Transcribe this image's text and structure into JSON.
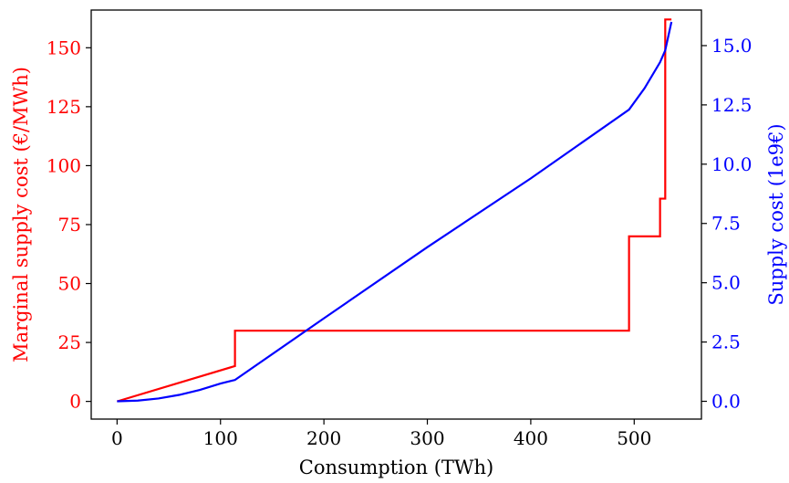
{
  "chart_data": {
    "type": "line",
    "title": "",
    "xlabel": "Consumption (TWh)",
    "ylabel_left": "Marginal supply cost (€/MWh)",
    "ylabel_right": "Supply cost (1e9€)",
    "xlim": [
      -25,
      565
    ],
    "ylim_left": [
      -7.5,
      166
    ],
    "ylim_right": [
      -0.75,
      16.5
    ],
    "xticks": [
      0,
      100,
      200,
      300,
      400,
      500
    ],
    "xtick_labels": [
      "0",
      "100",
      "200",
      "300",
      "400",
      "500"
    ],
    "yticks_left": [
      0,
      25,
      50,
      75,
      100,
      125,
      150
    ],
    "ytick_labels_left": [
      "0",
      "25",
      "50",
      "75",
      "100",
      "125",
      "150"
    ],
    "yticks_right": [
      0.0,
      2.5,
      5.0,
      7.5,
      10.0,
      12.5,
      15.0
    ],
    "ytick_labels_right": [
      "0.0",
      "2.5",
      "5.0",
      "7.5",
      "10.0",
      "12.5",
      "15.0"
    ],
    "grid": false,
    "series": [
      {
        "axis": "left",
        "color": "#ff0000",
        "x": [
          0,
          114,
          114,
          495,
          495,
          525,
          525,
          530,
          530,
          536
        ],
        "y": [
          0,
          15,
          30,
          30,
          70,
          70,
          86,
          86,
          162,
          162
        ]
      },
      {
        "axis": "right",
        "color": "#0000ff",
        "x": [
          0,
          20,
          40,
          60,
          80,
          100,
          114,
          200,
          300,
          400,
          495,
          510,
          525,
          530,
          536
        ],
        "y": [
          0,
          0.03,
          0.12,
          0.27,
          0.48,
          0.75,
          0.9,
          3.5,
          6.5,
          9.4,
          12.3,
          13.2,
          14.3,
          14.8,
          16.0
        ]
      }
    ]
  },
  "colors": {
    "left_axis": "#ff0000",
    "right_axis": "#0000ff",
    "x_axis": "#000000"
  }
}
